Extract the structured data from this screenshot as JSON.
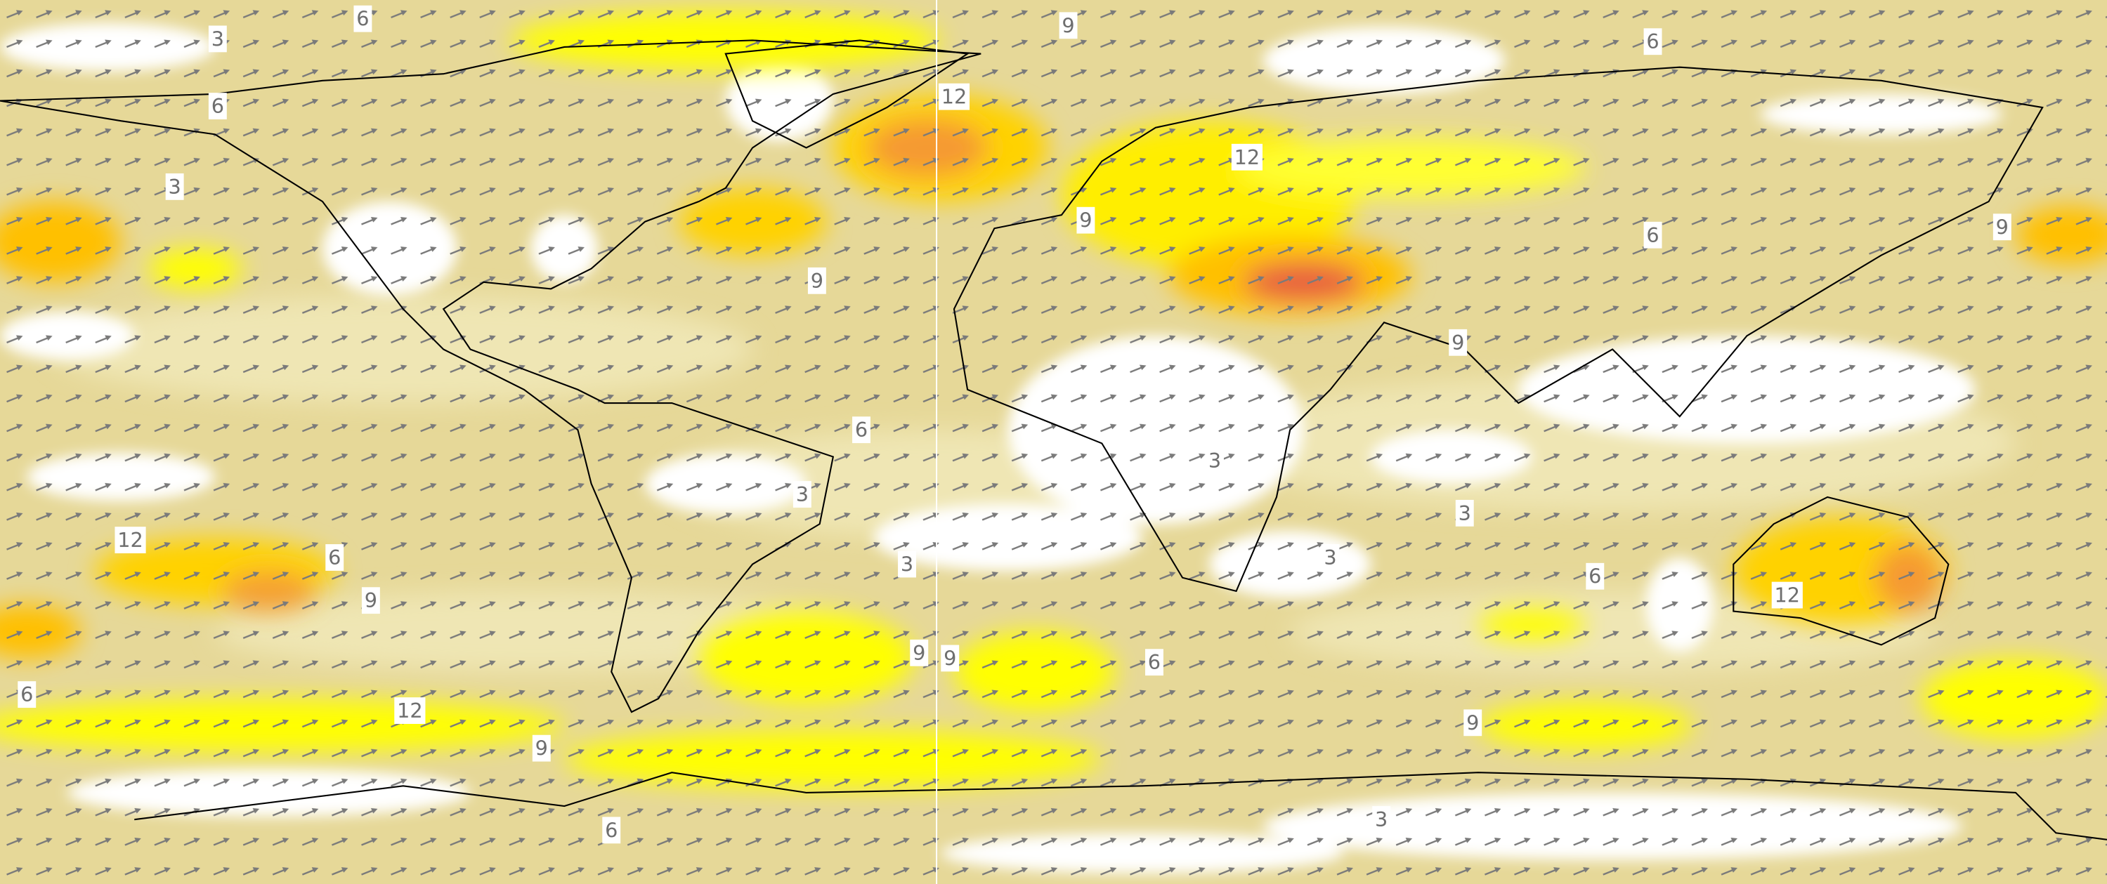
{
  "contour_labels": [
    "6",
    "3",
    "9",
    "12",
    "6",
    "6",
    "3",
    "12",
    "9",
    "9",
    "6",
    "9",
    "9",
    "6",
    "3",
    "3",
    "3",
    "12",
    "6",
    "3",
    "3",
    "6",
    "9",
    "12",
    "9",
    "9",
    "6",
    "6",
    "12",
    "9",
    "9",
    "3",
    "6"
  ]
}
